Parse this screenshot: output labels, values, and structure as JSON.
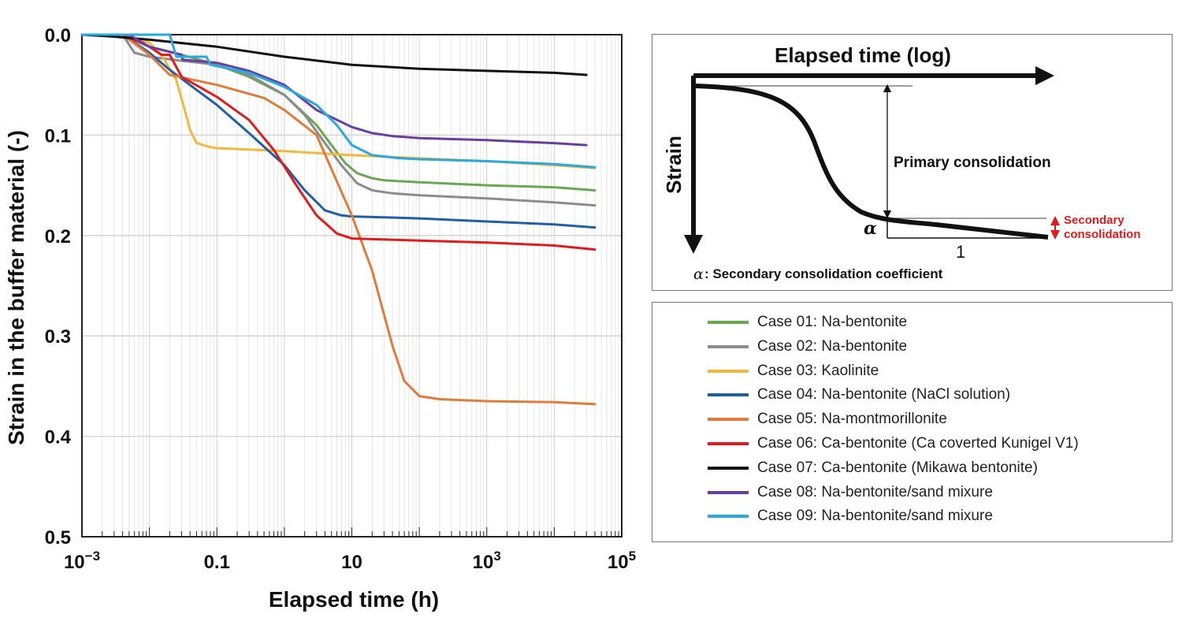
{
  "chart_data": {
    "type": "line",
    "xscale": "log",
    "xlabel": "Elapsed time (h)",
    "ylabel": "Strain in the buffer material (-)",
    "xlim": [
      0.001,
      100000
    ],
    "ylim": [
      0.0,
      0.5
    ],
    "y_inverted": true,
    "grid": true,
    "xticks": [
      {
        "value": 0.001,
        "base": "10",
        "exp": "−3",
        "plain": ""
      },
      {
        "value": 0.1,
        "base": "",
        "exp": "",
        "plain": "0.1"
      },
      {
        "value": 10,
        "base": "",
        "exp": "",
        "plain": "10"
      },
      {
        "value": 1000,
        "base": "10",
        "exp": "3",
        "plain": ""
      },
      {
        "value": 100000,
        "base": "10",
        "exp": "5",
        "plain": ""
      }
    ],
    "yticks": [
      {
        "value": 0.0,
        "label": "0.0"
      },
      {
        "value": 0.1,
        "label": "0.1"
      },
      {
        "value": 0.2,
        "label": "0.2"
      },
      {
        "value": 0.3,
        "label": "0.3"
      },
      {
        "value": 0.4,
        "label": "0.4"
      },
      {
        "value": 0.5,
        "label": "0.5"
      }
    ],
    "series": [
      {
        "name": "Case 01: Na-bentonite",
        "color": "#6aa84f",
        "x": [
          0.001,
          0.004,
          0.01,
          0.03,
          0.1,
          0.3,
          1,
          3,
          5,
          8,
          12,
          20,
          30,
          100,
          1000,
          10000,
          40000
        ],
        "y": [
          0.0,
          0.0,
          0.012,
          0.02,
          0.03,
          0.042,
          0.06,
          0.09,
          0.11,
          0.128,
          0.138,
          0.143,
          0.145,
          0.147,
          0.15,
          0.152,
          0.155
        ]
      },
      {
        "name": "Case 02: Na-bentonite",
        "color": "#8c8c8c",
        "x": [
          0.001,
          0.004,
          0.006,
          0.01,
          0.03,
          0.1,
          0.3,
          1,
          2,
          4,
          7,
          12,
          20,
          40,
          100,
          1000,
          10000,
          40000
        ],
        "y": [
          0.0,
          0.0,
          0.018,
          0.022,
          0.026,
          0.03,
          0.04,
          0.06,
          0.08,
          0.108,
          0.13,
          0.148,
          0.155,
          0.158,
          0.16,
          0.163,
          0.167,
          0.17
        ]
      },
      {
        "name": "Case 03: Kaolinite",
        "color": "#f4b73c",
        "x": [
          0.001,
          0.004,
          0.01,
          0.015,
          0.025,
          0.035,
          0.04,
          0.05,
          0.08,
          0.1,
          1,
          10,
          100,
          1000,
          10000,
          40000
        ],
        "y": [
          0.0,
          0.0,
          0.008,
          0.02,
          0.045,
          0.08,
          0.095,
          0.108,
          0.112,
          0.113,
          0.116,
          0.12,
          0.123,
          0.126,
          0.13,
          0.133
        ]
      },
      {
        "name": "Case 04: Na-bentonite (NaCl solution)",
        "color": "#1f5fa8",
        "x": [
          0.001,
          0.004,
          0.01,
          0.02,
          0.05,
          0.1,
          0.3,
          1,
          2,
          4,
          7,
          10,
          100,
          1000,
          10000,
          40000
        ],
        "y": [
          0.0,
          0.0,
          0.018,
          0.035,
          0.055,
          0.07,
          0.098,
          0.13,
          0.155,
          0.175,
          0.18,
          0.181,
          0.183,
          0.186,
          0.189,
          0.192
        ]
      },
      {
        "name": "Case 05: Na-montmorillonite",
        "color": "#e07b39",
        "x": [
          0.001,
          0.004,
          0.01,
          0.02,
          0.1,
          0.5,
          1,
          3,
          10,
          20,
          40,
          60,
          100,
          200,
          1000,
          10000,
          40000
        ],
        "y": [
          0.0,
          0.0,
          0.02,
          0.04,
          0.05,
          0.063,
          0.075,
          0.1,
          0.18,
          0.235,
          0.31,
          0.345,
          0.36,
          0.363,
          0.365,
          0.366,
          0.368
        ]
      },
      {
        "name": "Case 06: Ca-bentonite (Ca coverted Kunigel V1)",
        "color": "#e31a1c",
        "x": [
          0.001,
          0.004,
          0.01,
          0.015,
          0.02,
          0.03,
          0.1,
          0.3,
          0.7,
          1.5,
          3,
          6,
          10,
          100,
          1000,
          10000,
          40000
        ],
        "y": [
          0.0,
          0.0,
          0.012,
          0.02,
          0.02,
          0.042,
          0.062,
          0.085,
          0.115,
          0.15,
          0.18,
          0.198,
          0.203,
          0.205,
          0.207,
          0.21,
          0.214
        ]
      },
      {
        "name": "Case 07: Ca-bentonite (Mikawa bentonite)",
        "color": "#111111",
        "x": [
          0.001,
          0.003,
          0.01,
          0.1,
          1,
          10,
          100,
          1000,
          10000,
          30000
        ],
        "y": [
          0.0,
          0.002,
          0.005,
          0.012,
          0.022,
          0.03,
          0.034,
          0.036,
          0.038,
          0.04
        ]
      },
      {
        "name": "Case 08: Na-bentonite/sand mixure",
        "color": "#6a3ea1",
        "x": [
          0.001,
          0.005,
          0.01,
          0.03,
          0.031,
          0.1,
          0.3,
          1,
          3,
          10,
          20,
          40,
          100,
          1000,
          10000,
          30000
        ],
        "y": [
          0.0,
          0.0,
          0.012,
          0.02,
          0.025,
          0.028,
          0.036,
          0.05,
          0.075,
          0.092,
          0.098,
          0.101,
          0.103,
          0.105,
          0.108,
          0.11
        ]
      },
      {
        "name": "Case 09: Na-bentonite/sand mixure",
        "color": "#27aae1",
        "x": [
          0.001,
          0.01,
          0.02,
          0.025,
          0.07,
          0.08,
          0.3,
          1,
          3,
          6,
          10,
          20,
          50,
          100,
          1000,
          10000,
          40000
        ],
        "y": [
          0.0,
          0.0,
          0.0,
          0.022,
          0.022,
          0.03,
          0.038,
          0.052,
          0.07,
          0.09,
          0.11,
          0.12,
          0.123,
          0.124,
          0.126,
          0.129,
          0.132
        ]
      }
    ]
  },
  "schematic": {
    "x_axis_title": "Elapsed time (log)",
    "y_axis_title": "Strain",
    "primary_label": "Primary consolidation",
    "secondary_label_line1": "Secondary",
    "secondary_label_line2": "consolidation",
    "alpha_symbol": "α",
    "slope_run_label": "1",
    "caption_symbol": "α",
    "caption_text": ": Secondary consolidation coefficient",
    "curve_color": "#111111",
    "secondary_color": "#e31a1c"
  }
}
